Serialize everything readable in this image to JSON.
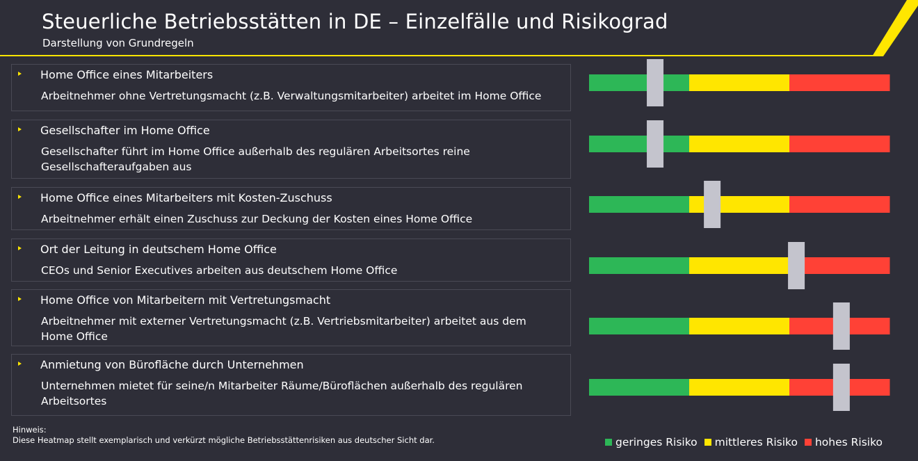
{
  "header": {
    "title": "Steuerliche Betriebsstätten in DE – Einzelfälle und Risikograd",
    "subtitle": "Darstellung von Grundregeln"
  },
  "colors": {
    "background": "#2e2e38",
    "accent": "#ffe600",
    "low": "#2db757",
    "medium": "#ffe600",
    "high": "#ff4136",
    "marker": "#c4c4cd"
  },
  "cases": [
    {
      "title": "Home Office eines Mitarbeiters",
      "description": "Arbeitnehmer ohne Vertretungsmacht (z.B. Verwaltungsmitarbeiter) arbeitet im Home Office"
    },
    {
      "title": "Gesellschafter im Home Office",
      "description": "Gesellschafter führt im Home Office außerhalb des regulären Arbeitsortes reine Gesellschafteraufgaben aus"
    },
    {
      "title": "Home Office eines Mitarbeiters mit Kosten-Zuschuss",
      "description": "Arbeitnehmer erhält einen Zuschuss zur Deckung der Kosten eines Home Office"
    },
    {
      "title": "Ort der Leitung in deutschem Home Office",
      "description": "CEOs und Senior Executives arbeiten aus deutschem Home Office"
    },
    {
      "title": "Home Office von Mitarbeitern mit Vertretungsmacht",
      "description": "Arbeitnehmer mit externer Vertretungsmacht (z.B. Vertriebsmitarbeiter) arbeitet aus dem Home Office"
    },
    {
      "title": "Anmietung von Bürofläche durch Unternehmen",
      "description": "Unternehmen mietet für seine/n Mitarbeiter Räume/Büroflächen außerhalb des regulären Arbeitsortes"
    }
  ],
  "chart_data": {
    "type": "heatmap",
    "scale": [
      0,
      1
    ],
    "segments": [
      {
        "name": "geringes Risiko",
        "from": 0,
        "to": 0.3333,
        "color": "#2db757"
      },
      {
        "name": "mittleres Risiko",
        "from": 0.3333,
        "to": 0.6667,
        "color": "#ffe600"
      },
      {
        "name": "hohes Risiko",
        "from": 0.6667,
        "to": 1,
        "color": "#ff4136"
      }
    ],
    "categories": [
      "Home Office eines Mitarbeiters",
      "Gesellschafter im Home Office",
      "Home Office eines Mitarbeiters mit Kosten-Zuschuss",
      "Ort der Leitung in deutschem Home Office",
      "Home Office von Mitarbeitern mit Vertretungsmacht",
      "Anmietung von Bürofläche durch Unternehmen"
    ],
    "values": [
      0.22,
      0.22,
      0.41,
      0.69,
      0.84,
      0.84
    ],
    "legend_position": "bottom-right"
  },
  "legend": {
    "low": "geringes Risiko",
    "medium": "mittleres Risiko",
    "high": "hohes Risiko"
  },
  "note": {
    "heading": "Hinweis:",
    "text": "Diese Heatmap stellt exemplarisch und verkürzt mögliche Betriebsstättenrisiken aus deutscher Sicht dar."
  }
}
